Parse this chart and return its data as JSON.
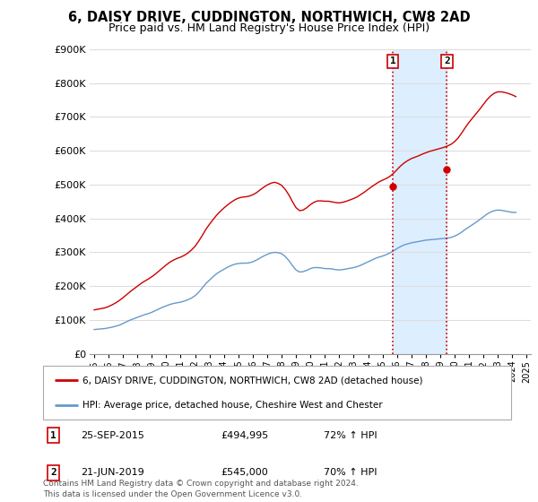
{
  "title": "6, DAISY DRIVE, CUDDINGTON, NORTHWICH, CW8 2AD",
  "subtitle": "Price paid vs. HM Land Registry's House Price Index (HPI)",
  "title_fontsize": 10.5,
  "subtitle_fontsize": 9,
  "ylim": [
    0,
    900000
  ],
  "yticks": [
    0,
    100000,
    200000,
    300000,
    400000,
    500000,
    600000,
    700000,
    800000,
    900000
  ],
  "ytick_labels": [
    "£0",
    "£100K",
    "£200K",
    "£300K",
    "£400K",
    "£500K",
    "£600K",
    "£700K",
    "£800K",
    "£900K"
  ],
  "red_line_label": "6, DAISY DRIVE, CUDDINGTON, NORTHWICH, CW8 2AD (detached house)",
  "blue_line_label": "HPI: Average price, detached house, Cheshire West and Chester",
  "event1_date": "25-SEP-2015",
  "event1_price": "£494,995",
  "event1_pct": "72% ↑ HPI",
  "event1_x": 2015.73,
  "event1_y": 494995,
  "event2_date": "21-JUN-2019",
  "event2_price": "£545,000",
  "event2_pct": "70% ↑ HPI",
  "event2_x": 2019.47,
  "event2_y": 545000,
  "footer": "Contains HM Land Registry data © Crown copyright and database right 2024.\nThis data is licensed under the Open Government Licence v3.0.",
  "red_color": "#cc0000",
  "blue_color": "#6699cc",
  "shade_color": "#ddeeff",
  "hpi_data": {
    "x": [
      1995.0,
      1995.25,
      1995.5,
      1995.75,
      1996.0,
      1996.25,
      1996.5,
      1996.75,
      1997.0,
      1997.25,
      1997.5,
      1997.75,
      1998.0,
      1998.25,
      1998.5,
      1998.75,
      1999.0,
      1999.25,
      1999.5,
      1999.75,
      2000.0,
      2000.25,
      2000.5,
      2000.75,
      2001.0,
      2001.25,
      2001.5,
      2001.75,
      2002.0,
      2002.25,
      2002.5,
      2002.75,
      2003.0,
      2003.25,
      2003.5,
      2003.75,
      2004.0,
      2004.25,
      2004.5,
      2004.75,
      2005.0,
      2005.25,
      2005.5,
      2005.75,
      2006.0,
      2006.25,
      2006.5,
      2006.75,
      2007.0,
      2007.25,
      2007.5,
      2007.75,
      2008.0,
      2008.25,
      2008.5,
      2008.75,
      2009.0,
      2009.25,
      2009.5,
      2009.75,
      2010.0,
      2010.25,
      2010.5,
      2010.75,
      2011.0,
      2011.25,
      2011.5,
      2011.75,
      2012.0,
      2012.25,
      2012.5,
      2012.75,
      2013.0,
      2013.25,
      2013.5,
      2013.75,
      2014.0,
      2014.25,
      2014.5,
      2014.75,
      2015.0,
      2015.25,
      2015.5,
      2015.75,
      2016.0,
      2016.25,
      2016.5,
      2016.75,
      2017.0,
      2017.25,
      2017.5,
      2017.75,
      2018.0,
      2018.25,
      2018.5,
      2018.75,
      2019.0,
      2019.25,
      2019.5,
      2019.75,
      2020.0,
      2020.25,
      2020.5,
      2020.75,
      2021.0,
      2021.25,
      2021.5,
      2021.75,
      2022.0,
      2022.25,
      2022.5,
      2022.75,
      2023.0,
      2023.25,
      2023.5,
      2023.75,
      2024.0,
      2024.25
    ],
    "y": [
      72000,
      73000,
      74000,
      75000,
      77000,
      79000,
      82000,
      85000,
      90000,
      95000,
      100000,
      104000,
      108000,
      112000,
      116000,
      119000,
      123000,
      128000,
      133000,
      138000,
      142000,
      146000,
      149000,
      151000,
      153000,
      156000,
      160000,
      165000,
      172000,
      182000,
      195000,
      208000,
      218000,
      228000,
      237000,
      244000,
      250000,
      256000,
      261000,
      265000,
      267000,
      268000,
      268000,
      269000,
      272000,
      277000,
      283000,
      289000,
      294000,
      298000,
      300000,
      299000,
      296000,
      288000,
      276000,
      261000,
      248000,
      242000,
      243000,
      247000,
      252000,
      255000,
      255000,
      254000,
      252000,
      252000,
      251000,
      249000,
      248000,
      249000,
      251000,
      253000,
      255000,
      258000,
      262000,
      267000,
      272000,
      277000,
      282000,
      286000,
      289000,
      293000,
      298000,
      304000,
      311000,
      317000,
      322000,
      325000,
      328000,
      330000,
      332000,
      334000,
      336000,
      337000,
      338000,
      339000,
      340000,
      341000,
      342000,
      344000,
      348000,
      353000,
      360000,
      368000,
      375000,
      382000,
      389000,
      397000,
      405000,
      413000,
      419000,
      423000,
      425000,
      424000,
      422000,
      420000,
      418000,
      418000
    ]
  },
  "price_data": {
    "x": [
      1995.0,
      1995.25,
      1995.5,
      1995.75,
      1996.0,
      1996.25,
      1996.5,
      1996.75,
      1997.0,
      1997.25,
      1997.5,
      1997.75,
      1998.0,
      1998.25,
      1998.5,
      1998.75,
      1999.0,
      1999.25,
      1999.5,
      1999.75,
      2000.0,
      2000.25,
      2000.5,
      2000.75,
      2001.0,
      2001.25,
      2001.5,
      2001.75,
      2002.0,
      2002.25,
      2002.5,
      2002.75,
      2003.0,
      2003.25,
      2003.5,
      2003.75,
      2004.0,
      2004.25,
      2004.5,
      2004.75,
      2005.0,
      2005.25,
      2005.5,
      2005.75,
      2006.0,
      2006.25,
      2006.5,
      2006.75,
      2007.0,
      2007.25,
      2007.5,
      2007.75,
      2008.0,
      2008.25,
      2008.5,
      2008.75,
      2009.0,
      2009.25,
      2009.5,
      2009.75,
      2010.0,
      2010.25,
      2010.5,
      2010.75,
      2011.0,
      2011.25,
      2011.5,
      2011.75,
      2012.0,
      2012.25,
      2012.5,
      2012.75,
      2013.0,
      2013.25,
      2013.5,
      2013.75,
      2014.0,
      2014.25,
      2014.5,
      2014.75,
      2015.0,
      2015.25,
      2015.5,
      2015.75,
      2016.0,
      2016.25,
      2016.5,
      2016.75,
      2017.0,
      2017.25,
      2017.5,
      2017.75,
      2018.0,
      2018.25,
      2018.5,
      2018.75,
      2019.0,
      2019.25,
      2019.5,
      2019.75,
      2020.0,
      2020.25,
      2020.5,
      2020.75,
      2021.0,
      2021.25,
      2021.5,
      2021.75,
      2022.0,
      2022.25,
      2022.5,
      2022.75,
      2023.0,
      2023.25,
      2023.5,
      2023.75,
      2024.0,
      2024.25
    ],
    "y": [
      130000,
      132000,
      134000,
      136000,
      140000,
      145000,
      151000,
      158000,
      166000,
      175000,
      184000,
      192000,
      200000,
      208000,
      215000,
      221000,
      228000,
      236000,
      245000,
      254000,
      263000,
      271000,
      277000,
      282000,
      286000,
      291000,
      298000,
      307000,
      318000,
      333000,
      350000,
      368000,
      383000,
      397000,
      410000,
      421000,
      431000,
      440000,
      448000,
      455000,
      460000,
      463000,
      464000,
      466000,
      470000,
      476000,
      484000,
      492000,
      499000,
      504000,
      507000,
      504000,
      498000,
      486000,
      470000,
      450000,
      432000,
      423000,
      425000,
      432000,
      441000,
      448000,
      452000,
      452000,
      451000,
      451000,
      449000,
      447000,
      446000,
      448000,
      451000,
      455000,
      459000,
      464000,
      471000,
      478000,
      486000,
      494000,
      501000,
      508000,
      513000,
      518000,
      524000,
      533000,
      544000,
      555000,
      564000,
      571000,
      577000,
      581000,
      585000,
      590000,
      594000,
      598000,
      601000,
      604000,
      607000,
      610000,
      614000,
      619000,
      627000,
      638000,
      653000,
      669000,
      684000,
      697000,
      710000,
      723000,
      737000,
      751000,
      762000,
      770000,
      774000,
      774000,
      772000,
      769000,
      765000,
      760000
    ]
  },
  "xlim": [
    1994.7,
    2025.3
  ],
  "xticks": [
    1995,
    1996,
    1997,
    1998,
    1999,
    2000,
    2001,
    2002,
    2003,
    2004,
    2005,
    2006,
    2007,
    2008,
    2009,
    2010,
    2011,
    2012,
    2013,
    2014,
    2015,
    2016,
    2017,
    2018,
    2019,
    2020,
    2021,
    2022,
    2023,
    2024,
    2025
  ]
}
